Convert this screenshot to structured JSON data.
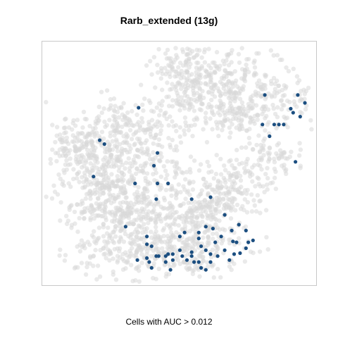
{
  "chart_data": {
    "type": "scatter",
    "title": "Rarb_extended (13g)",
    "xlabel": "Cells with AUC > 0.012",
    "ylabel": "",
    "axes_visible": false,
    "grid": false,
    "colors": {
      "background_cells": "#d9d9d9",
      "highlighted_cells": "#1b4e80",
      "frame": "#c8c8c8"
    },
    "series": [
      {
        "name": "",
        "color": "#1b4e80",
        "points": [
          [
            0.295,
            0.165
          ],
          [
            0.13,
            0.33
          ],
          [
            0.15,
            0.35
          ],
          [
            0.104,
            0.515
          ],
          [
            0.375,
            0.395
          ],
          [
            0.36,
            0.46
          ],
          [
            0.28,
            0.55
          ],
          [
            0.375,
            0.55
          ],
          [
            0.42,
            0.55
          ],
          [
            0.37,
            0.63
          ],
          [
            0.52,
            0.63
          ],
          [
            0.6,
            0.62
          ],
          [
            0.58,
            0.77
          ],
          [
            0.66,
            0.71
          ],
          [
            0.72,
            0.76
          ],
          [
            0.24,
            0.77
          ],
          [
            0.33,
            0.82
          ],
          [
            0.47,
            0.82
          ],
          [
            0.49,
            0.8
          ],
          [
            0.55,
            0.8
          ],
          [
            0.55,
            0.83
          ],
          [
            0.56,
            0.87
          ],
          [
            0.61,
            0.78
          ],
          [
            0.62,
            0.85
          ],
          [
            0.645,
            0.82
          ],
          [
            0.69,
            0.79
          ],
          [
            0.75,
            0.79
          ],
          [
            0.33,
            0.86
          ],
          [
            0.35,
            0.87
          ],
          [
            0.29,
            0.94
          ],
          [
            0.33,
            0.93
          ],
          [
            0.34,
            0.95
          ],
          [
            0.37,
            0.92
          ],
          [
            0.38,
            0.92
          ],
          [
            0.41,
            0.92
          ],
          [
            0.42,
            0.91
          ],
          [
            0.44,
            0.91
          ],
          [
            0.41,
            0.95
          ],
          [
            0.44,
            0.94
          ],
          [
            0.48,
            0.92
          ],
          [
            0.5,
            0.94
          ],
          [
            0.52,
            0.92
          ],
          [
            0.53,
            0.95
          ],
          [
            0.52,
            0.9
          ],
          [
            0.47,
            0.89
          ],
          [
            0.55,
            0.95
          ],
          [
            0.58,
            0.89
          ],
          [
            0.6,
            0.91
          ],
          [
            0.63,
            0.92
          ],
          [
            0.66,
            0.89
          ],
          [
            0.7,
            0.91
          ],
          [
            0.71,
            0.85
          ],
          [
            0.75,
            0.88
          ],
          [
            0.76,
            0.85
          ],
          [
            0.78,
            0.84
          ],
          [
            0.35,
            0.98
          ],
          [
            0.43,
            0.99
          ],
          [
            0.56,
            0.98
          ],
          [
            0.58,
            0.99
          ],
          [
            0.6,
            0.95
          ],
          [
            0.68,
            0.94
          ],
          [
            0.695,
            0.845
          ],
          [
            0.725,
            0.905
          ],
          [
            0.83,
            0.1
          ],
          [
            0.82,
            0.25
          ],
          [
            0.85,
            0.31
          ],
          [
            0.87,
            0.25
          ],
          [
            0.89,
            0.25
          ],
          [
            0.91,
            0.25
          ],
          [
            0.94,
            0.17
          ],
          [
            0.95,
            0.19
          ],
          [
            0.97,
            0.1
          ],
          [
            0.98,
            0.21
          ],
          [
            1.0,
            0.14
          ],
          [
            0.96,
            0.44
          ]
        ]
      }
    ]
  }
}
